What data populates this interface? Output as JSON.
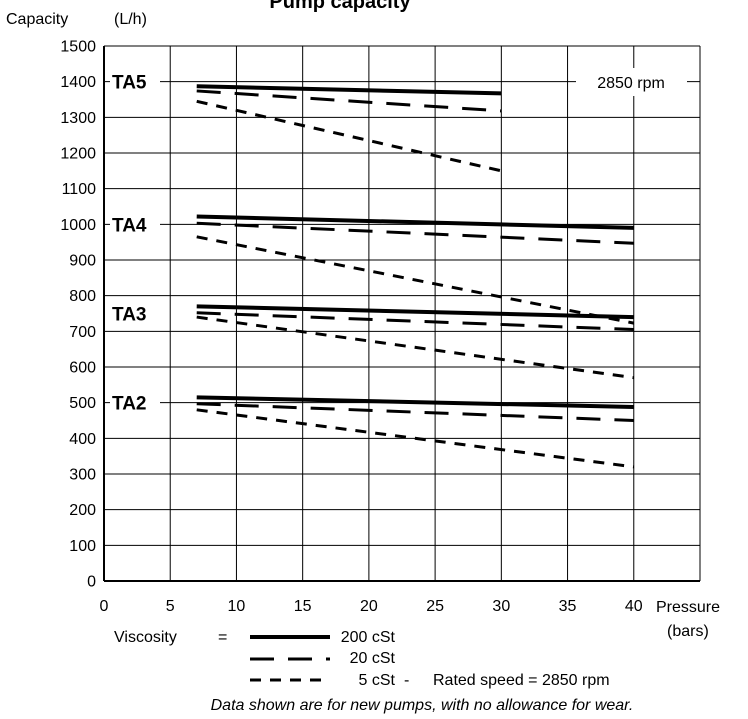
{
  "chart_data": {
    "type": "line",
    "title": "Pump capacity",
    "ylabel": "Capacity",
    "yunit": "(L/h)",
    "xlabel": "Pressure",
    "xunit": "(bars)",
    "xlim": [
      0,
      45
    ],
    "ylim": [
      0,
      1500
    ],
    "xticks": [
      0,
      5,
      10,
      15,
      20,
      25,
      30,
      35,
      40
    ],
    "yticks": [
      0,
      100,
      200,
      300,
      400,
      500,
      600,
      700,
      800,
      900,
      1000,
      1100,
      1200,
      1300,
      1400,
      1500
    ],
    "grid": true,
    "speed_label": "2850 rpm",
    "line_styles": {
      "200 cSt": "solid",
      "20 cSt": "dashed",
      "5 cSt": "dotted"
    },
    "groups": [
      {
        "name": "TA5",
        "label_y": 1400,
        "series": [
          {
            "name": "200 cSt",
            "x": [
              7,
              30
            ],
            "y": [
              1387,
              1367
            ]
          },
          {
            "name": "20 cSt",
            "x": [
              7,
              30
            ],
            "y": [
              1374,
              1318
            ]
          },
          {
            "name": "5 cSt",
            "x": [
              7,
              30
            ],
            "y": [
              1345,
              1150
            ]
          }
        ]
      },
      {
        "name": "TA4",
        "label_y": 1000,
        "series": [
          {
            "name": "200 cSt",
            "x": [
              7,
              40
            ],
            "y": [
              1022,
              990
            ]
          },
          {
            "name": "20 cSt",
            "x": [
              7,
              40
            ],
            "y": [
              1003,
              947
            ]
          },
          {
            "name": "5 cSt",
            "x": [
              7,
              40
            ],
            "y": [
              965,
              723
            ]
          }
        ]
      },
      {
        "name": "TA3",
        "label_y": 750,
        "series": [
          {
            "name": "200 cSt",
            "x": [
              7,
              40
            ],
            "y": [
              770,
              740
            ]
          },
          {
            "name": "20 cSt",
            "x": [
              7,
              40
            ],
            "y": [
              752,
              705
            ]
          },
          {
            "name": "5 cSt",
            "x": [
              7,
              40
            ],
            "y": [
              740,
              570
            ]
          }
        ]
      },
      {
        "name": "TA2",
        "label_y": 500,
        "series": [
          {
            "name": "200 cSt",
            "x": [
              7,
              40
            ],
            "y": [
              515,
              488
            ]
          },
          {
            "name": "20 cSt",
            "x": [
              7,
              40
            ],
            "y": [
              497,
              450
            ]
          },
          {
            "name": "5 cSt",
            "x": [
              7,
              40
            ],
            "y": [
              480,
              320
            ]
          }
        ]
      }
    ],
    "legend": {
      "title": "Viscosity",
      "equals": "=",
      "entries": [
        {
          "label": "200 cSt",
          "style": "solid"
        },
        {
          "label": "20 cSt",
          "style": "dashed"
        },
        {
          "label": "5 cSt",
          "style": "dotted"
        }
      ],
      "separator": "-",
      "rated_speed": "Rated speed = 2850 rpm"
    },
    "note": "Data shown are for new pumps, with no allowance for wear."
  }
}
